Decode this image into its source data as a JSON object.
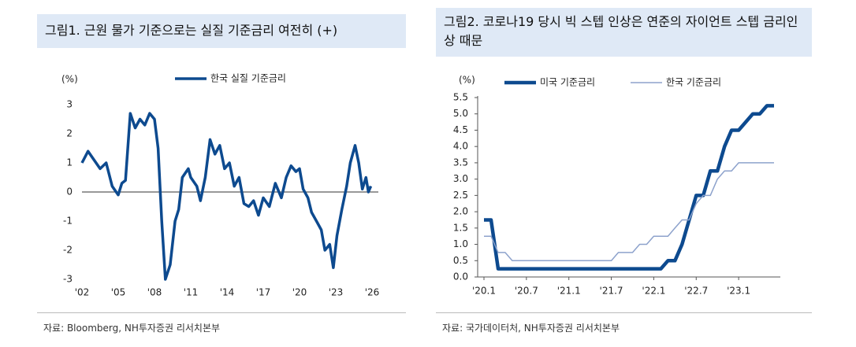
{
  "chart_data": [
    {
      "type": "line",
      "title": "그림1. 근원 물가 기준으로는 실질 기준금리 여전히 (+)",
      "unit": "(%)",
      "source": "자료: Bloomberg, NH투자증권 리서치본부",
      "legend": "top",
      "x": [
        2002.0,
        2002.5,
        2003.0,
        2003.5,
        2004.0,
        2004.5,
        2005.0,
        2005.3,
        2005.6,
        2006.0,
        2006.4,
        2006.8,
        2007.2,
        2007.6,
        2008.0,
        2008.3,
        2008.6,
        2008.9,
        2009.3,
        2009.7,
        2010.0,
        2010.3,
        2010.8,
        2011.0,
        2011.5,
        2011.8,
        2012.2,
        2012.6,
        2013.0,
        2013.4,
        2013.8,
        2014.2,
        2014.6,
        2015.0,
        2015.4,
        2015.8,
        2016.2,
        2016.6,
        2017.0,
        2017.5,
        2018.0,
        2018.5,
        2018.9,
        2019.3,
        2019.7,
        2020.0,
        2020.3,
        2020.7,
        2021.0,
        2021.4,
        2021.8,
        2022.1,
        2022.5,
        2022.8,
        2023.1,
        2023.5,
        2023.9,
        2024.2,
        2024.6,
        2024.9,
        2025.2,
        2025.5,
        2025.7,
        2025.9
      ],
      "series": [
        {
          "name": "한국 실질 기준금리",
          "color": "#0d4a8f",
          "values": [
            1.0,
            1.4,
            1.1,
            0.8,
            1.0,
            0.2,
            -0.1,
            0.3,
            0.4,
            2.7,
            2.2,
            2.5,
            2.3,
            2.7,
            2.5,
            1.5,
            -1.0,
            -3.0,
            -2.5,
            -1.0,
            -0.6,
            0.5,
            0.8,
            0.5,
            0.2,
            -0.3,
            0.5,
            1.8,
            1.3,
            1.6,
            0.8,
            1.0,
            0.2,
            0.5,
            -0.4,
            -0.5,
            -0.3,
            -0.8,
            -0.2,
            -0.5,
            0.3,
            -0.2,
            0.5,
            0.9,
            0.7,
            0.8,
            0.1,
            -0.2,
            -0.7,
            -1.0,
            -1.3,
            -2.0,
            -1.8,
            -2.6,
            -1.5,
            -0.6,
            0.2,
            1.0,
            1.6,
            1.0,
            0.1,
            0.5,
            0.0,
            0.2
          ]
        }
      ],
      "xlim": [
        2002,
        2026
      ],
      "xticks": [
        {
          "value": 2002,
          "label": "'02"
        },
        {
          "value": 2005,
          "label": "'05"
        },
        {
          "value": 2008,
          "label": "'08"
        },
        {
          "value": 2011,
          "label": "'11"
        },
        {
          "value": 2014,
          "label": "'14"
        },
        {
          "value": 2017,
          "label": "'17"
        },
        {
          "value": 2020,
          "label": "'20"
        },
        {
          "value": 2023,
          "label": "'23"
        },
        {
          "value": 2026,
          "label": "'26"
        }
      ],
      "ylim": [
        -3,
        3
      ],
      "yticks": [
        -3,
        -2,
        -1,
        0,
        1,
        2,
        3
      ]
    },
    {
      "type": "line",
      "title": "그림2. 코로나19 당시 빅 스텝 인상은 연준의 자이언트 스텝 금리인상 때문",
      "unit": "(%)",
      "source": "자료: 국가데이터처, NH투자증권 리서치본부",
      "legend": "top",
      "categories": [
        "'20.1",
        null,
        null,
        null,
        null,
        null,
        "'20.7",
        null,
        null,
        null,
        null,
        null,
        "'21.1",
        null,
        null,
        null,
        null,
        null,
        "'21.7",
        null,
        null,
        null,
        null,
        null,
        "'22.1",
        null,
        null,
        null,
        null,
        null,
        "'22.7",
        null,
        null,
        null,
        null,
        null,
        "'23.1",
        null,
        null,
        null,
        null,
        null
      ],
      "series": [
        {
          "name": "미국 기준금리",
          "color": "#0d4a8f",
          "values": [
            1.75,
            1.75,
            0.25,
            0.25,
            0.25,
            0.25,
            0.25,
            0.25,
            0.25,
            0.25,
            0.25,
            0.25,
            0.25,
            0.25,
            0.25,
            0.25,
            0.25,
            0.25,
            0.25,
            0.25,
            0.25,
            0.25,
            0.25,
            0.25,
            0.25,
            0.25,
            0.5,
            0.5,
            1.0,
            1.75,
            2.5,
            2.5,
            3.25,
            3.25,
            4.0,
            4.5,
            4.5,
            4.75,
            5.0,
            5.0,
            5.25,
            5.25
          ]
        },
        {
          "name": "한국 기준금리",
          "color": "#8da2cc",
          "values": [
            1.25,
            1.25,
            0.75,
            0.75,
            0.5,
            0.5,
            0.5,
            0.5,
            0.5,
            0.5,
            0.5,
            0.5,
            0.5,
            0.5,
            0.5,
            0.5,
            0.5,
            0.5,
            0.5,
            0.75,
            0.75,
            0.75,
            1.0,
            1.0,
            1.25,
            1.25,
            1.25,
            1.5,
            1.75,
            1.75,
            2.25,
            2.5,
            2.5,
            3.0,
            3.25,
            3.25,
            3.5,
            3.5,
            3.5,
            3.5,
            3.5,
            3.5
          ]
        }
      ],
      "ylim": [
        0,
        5.5
      ],
      "yticks": [
        {
          "value": 0,
          "label": "0.0"
        },
        0.5,
        {
          "value": 1,
          "label": "1.0"
        },
        1.5,
        {
          "value": 2,
          "label": "2.0"
        },
        2.5,
        {
          "value": 3,
          "label": "3.0"
        },
        3.5,
        {
          "value": 4,
          "label": "4.0"
        },
        4.5,
        {
          "value": 5,
          "label": "5.0"
        },
        5.5
      ]
    }
  ]
}
